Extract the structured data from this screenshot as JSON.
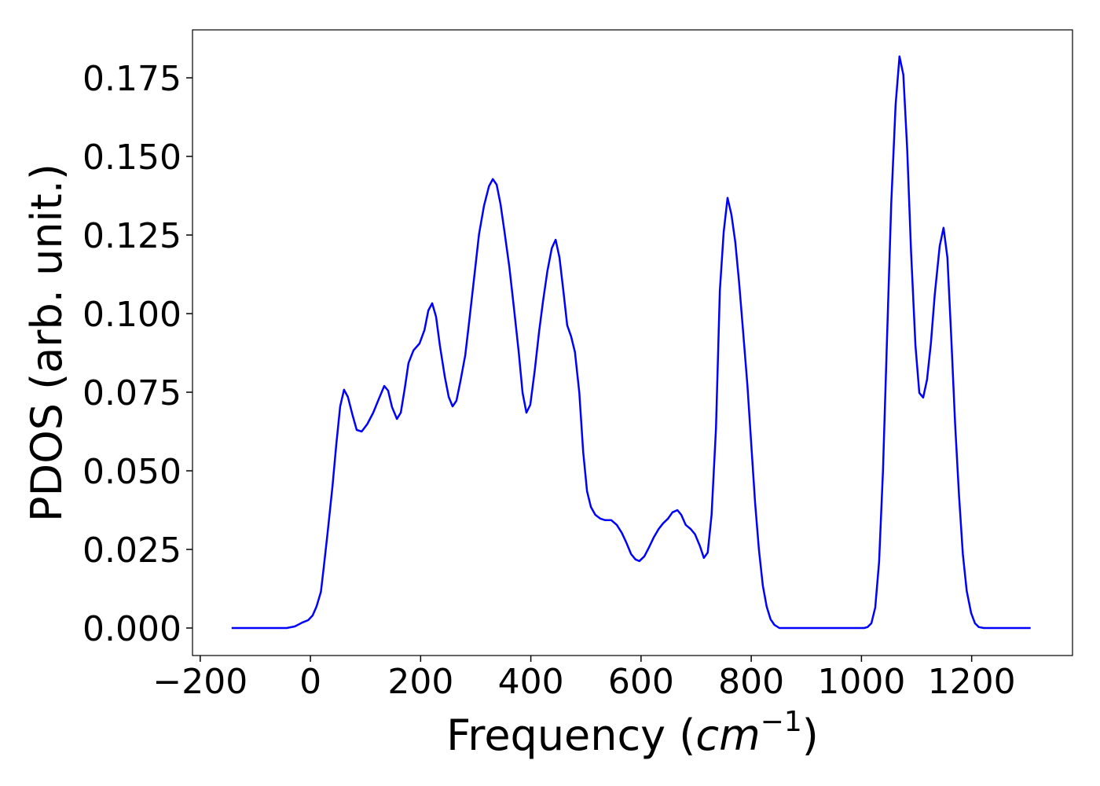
{
  "chart_data": {
    "type": "line",
    "xlabel": [
      "Frequency (",
      "cm",
      "−1",
      ")"
    ],
    "ylabel": "PDOS (arb. unit.)",
    "xlim": [
      -214,
      1383
    ],
    "ylim": [
      -0.00875,
      0.19025
    ],
    "xticks": [
      {
        "value": -200,
        "label": "−200"
      },
      0,
      200,
      400,
      600,
      800,
      1000,
      1200
    ],
    "yticks": [
      {
        "value": 0,
        "label": "0.000"
      },
      {
        "value": 0.025,
        "label": "0.025"
      },
      {
        "value": 0.05,
        "label": "0.050"
      },
      {
        "value": 0.075,
        "label": "0.075"
      },
      {
        "value": 0.1,
        "label": "0.100"
      },
      {
        "value": 0.125,
        "label": "0.125"
      },
      {
        "value": 0.15,
        "label": "0.150"
      },
      {
        "value": 0.175,
        "label": "0.175"
      }
    ],
    "grid": false,
    "x": [
      -143,
      -43,
      -28.5,
      -14,
      -4,
      4,
      11,
      19,
      24,
      31,
      40,
      47,
      54,
      61,
      68,
      76,
      84,
      93,
      103,
      114,
      124,
      134,
      141,
      148,
      157,
      164,
      171,
      178,
      187,
      198,
      207,
      214,
      221,
      228,
      235,
      244,
      251,
      258,
      265,
      272,
      281,
      288,
      298,
      306,
      315,
      324,
      331,
      338,
      345,
      352,
      361,
      369,
      378,
      385,
      392,
      399,
      407,
      415,
      422,
      430,
      438,
      445,
      452,
      459,
      466,
      473,
      480,
      488,
      495,
      502,
      509,
      517,
      526,
      535,
      546,
      556,
      565,
      573,
      582,
      590,
      597,
      606,
      614,
      623,
      632,
      640,
      649,
      657,
      666,
      673,
      681,
      690,
      698,
      707,
      714,
      721,
      728,
      736,
      743,
      750,
      757,
      764,
      771,
      778,
      785,
      793,
      800,
      807,
      814,
      821,
      828,
      835,
      842,
      851,
      862,
      1005,
      1011,
      1018,
      1025,
      1032,
      1039,
      1046,
      1054,
      1062,
      1069,
      1076,
      1083,
      1090,
      1098,
      1105,
      1112,
      1119,
      1126,
      1133,
      1142,
      1149,
      1156,
      1163,
      1170,
      1177,
      1184,
      1191,
      1199,
      1206,
      1213,
      1222,
      1307
    ],
    "series": [
      {
        "color": "#0000ff",
        "values": [
          0,
          0,
          0.0005,
          0.0018,
          0.0025,
          0.004,
          0.0068,
          0.0115,
          0.019,
          0.03,
          0.045,
          0.0585,
          0.0705,
          0.0758,
          0.0735,
          0.068,
          0.063,
          0.0625,
          0.0648,
          0.0685,
          0.0728,
          0.077,
          0.0755,
          0.0703,
          0.0665,
          0.0685,
          0.076,
          0.0843,
          0.0883,
          0.0905,
          0.0948,
          0.101,
          0.1033,
          0.099,
          0.0898,
          0.0798,
          0.0735,
          0.0705,
          0.0723,
          0.0783,
          0.0868,
          0.0973,
          0.1128,
          0.1253,
          0.1343,
          0.1405,
          0.1428,
          0.141,
          0.1348,
          0.1263,
          0.1148,
          0.1023,
          0.0878,
          0.0748,
          0.0685,
          0.071,
          0.0818,
          0.0943,
          0.1038,
          0.1135,
          0.1208,
          0.1235,
          0.1178,
          0.1073,
          0.0963,
          0.0928,
          0.0878,
          0.0748,
          0.056,
          0.0435,
          0.0385,
          0.036,
          0.0348,
          0.0343,
          0.0343,
          0.0328,
          0.0303,
          0.0273,
          0.0235,
          0.0218,
          0.0213,
          0.0228,
          0.0255,
          0.0288,
          0.0315,
          0.0333,
          0.0348,
          0.0368,
          0.0375,
          0.036,
          0.0328,
          0.0315,
          0.0298,
          0.026,
          0.0223,
          0.024,
          0.036,
          0.0635,
          0.1073,
          0.126,
          0.1368,
          0.1315,
          0.1228,
          0.1098,
          0.0948,
          0.0773,
          0.0585,
          0.0398,
          0.0248,
          0.0135,
          0.0068,
          0.0028,
          0.001,
          0,
          0,
          0,
          0.0003,
          0.0015,
          0.0065,
          0.021,
          0.0498,
          0.0898,
          0.1348,
          0.1665,
          0.1818,
          0.176,
          0.1523,
          0.1198,
          0.0898,
          0.0748,
          0.0733,
          0.079,
          0.0905,
          0.106,
          0.1215,
          0.1273,
          0.1178,
          0.0923,
          0.0648,
          0.0423,
          0.0235,
          0.0118,
          0.0048,
          0.0015,
          0.0003,
          0,
          0
        ]
      }
    ]
  }
}
